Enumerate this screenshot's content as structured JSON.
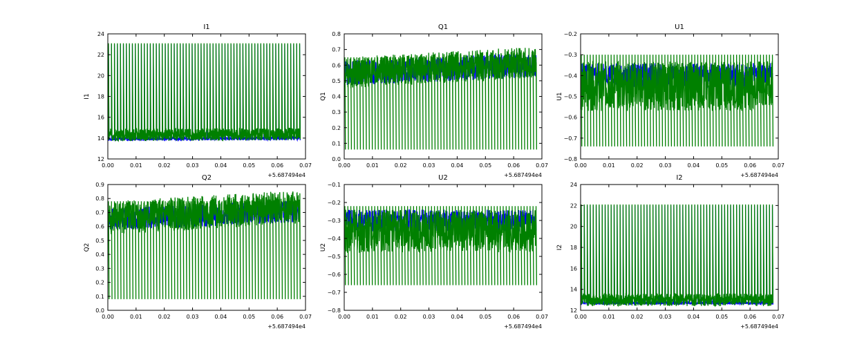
{
  "colors": {
    "blue": "#0000ff",
    "green": "#008000",
    "axes": "#000000",
    "background": "#ffffff"
  },
  "chart_data": [
    {
      "type": "line",
      "title": "I1",
      "xlabel": "",
      "ylabel": "I1",
      "x_offset_label": "+5.687494e4",
      "xlim": [
        0,
        0.07
      ],
      "ylim": [
        12,
        24
      ],
      "xticks": [
        0,
        0.01,
        0.02,
        0.03,
        0.04,
        0.05,
        0.06,
        0.07
      ],
      "xtick_labels": [
        "0.00",
        "0.01",
        "0.02",
        "0.03",
        "0.04",
        "0.05",
        "0.06",
        "0.07"
      ],
      "yticks": [
        12,
        14,
        16,
        18,
        20,
        22,
        24
      ],
      "ytick_labels": [
        "12",
        "14",
        "16",
        "18",
        "20",
        "22",
        "24"
      ],
      "series": [
        {
          "name": "blue",
          "color": "#0000ff",
          "x_end": 0.068,
          "baseline": 13.9,
          "spread": 0.15,
          "trend": 0.1,
          "spike_top": 23.0,
          "spike_bottom": 13.8,
          "spikes": 64,
          "seed": 1
        },
        {
          "name": "green",
          "color": "#008000",
          "x_end": 0.068,
          "baseline": 14.3,
          "spread": 0.6,
          "trend": 0.1,
          "spike_top": 23.1,
          "spike_bottom": 13.9,
          "spikes": 64,
          "seed": 2
        }
      ]
    },
    {
      "type": "line",
      "title": "Q1",
      "xlabel": "",
      "ylabel": "Q1",
      "x_offset_label": "+5.687494e4",
      "xlim": [
        0,
        0.07
      ],
      "ylim": [
        0,
        0.8
      ],
      "xticks": [
        0,
        0.01,
        0.02,
        0.03,
        0.04,
        0.05,
        0.06,
        0.07
      ],
      "xtick_labels": [
        "0.00",
        "0.01",
        "0.02",
        "0.03",
        "0.04",
        "0.05",
        "0.06",
        "0.07"
      ],
      "yticks": [
        0,
        0.1,
        0.2,
        0.3,
        0.4,
        0.5,
        0.6,
        0.7,
        0.8
      ],
      "ytick_labels": [
        "0.0",
        "0.1",
        "0.2",
        "0.3",
        "0.4",
        "0.5",
        "0.6",
        "0.7",
        "0.8"
      ],
      "series": [
        {
          "name": "blue",
          "color": "#0000ff",
          "x_end": 0.068,
          "baseline": 0.55,
          "spread": 0.08,
          "trend": 0.05,
          "spike_top": 0.6,
          "spike_bottom": 0.48,
          "spikes": 0,
          "seed": 3
        },
        {
          "name": "green",
          "color": "#008000",
          "x_end": 0.068,
          "baseline": 0.55,
          "spread": 0.1,
          "trend": 0.07,
          "spike_top": 0.65,
          "spike_bottom": 0.06,
          "spikes": 64,
          "seed": 4
        }
      ]
    },
    {
      "type": "line",
      "title": "U1",
      "xlabel": "",
      "ylabel": "U1",
      "x_offset_label": "+5.687494e4",
      "xlim": [
        0,
        0.07
      ],
      "ylim": [
        -0.8,
        -0.2
      ],
      "xticks": [
        0,
        0.01,
        0.02,
        0.03,
        0.04,
        0.05,
        0.06,
        0.07
      ],
      "xtick_labels": [
        "0.00",
        "0.01",
        "0.02",
        "0.03",
        "0.04",
        "0.05",
        "0.06",
        "0.07"
      ],
      "yticks": [
        -0.8,
        -0.7,
        -0.6,
        -0.5,
        -0.4,
        -0.3,
        -0.2
      ],
      "ytick_labels": [
        "−0.8",
        "−0.7",
        "−0.6",
        "−0.5",
        "−0.4",
        "−0.3",
        "−0.2"
      ],
      "series": [
        {
          "name": "blue",
          "color": "#0000ff",
          "x_end": 0.068,
          "baseline": -0.4,
          "spread": 0.06,
          "trend": 0,
          "spike_top": -0.34,
          "spike_bottom": -0.56,
          "spikes": 0,
          "seed": 5
        },
        {
          "name": "green",
          "color": "#008000",
          "x_end": 0.068,
          "baseline": -0.45,
          "spread": 0.12,
          "trend": 0,
          "spike_top": -0.3,
          "spike_bottom": -0.74,
          "spikes": 64,
          "seed": 6
        }
      ]
    },
    {
      "type": "line",
      "title": "Q2",
      "xlabel": "",
      "ylabel": "Q2",
      "x_offset_label": "+5.687494e4",
      "xlim": [
        0,
        0.07
      ],
      "ylim": [
        0,
        0.9
      ],
      "xticks": [
        0,
        0.01,
        0.02,
        0.03,
        0.04,
        0.05,
        0.06,
        0.07
      ],
      "xtick_labels": [
        "0.00",
        "0.01",
        "0.02",
        "0.03",
        "0.04",
        "0.05",
        "0.06",
        "0.07"
      ],
      "yticks": [
        0,
        0.1,
        0.2,
        0.3,
        0.4,
        0.5,
        0.6,
        0.7,
        0.8,
        0.9
      ],
      "ytick_labels": [
        "0.0",
        "0.1",
        "0.2",
        "0.3",
        "0.4",
        "0.5",
        "0.6",
        "0.7",
        "0.8",
        "0.9"
      ],
      "series": [
        {
          "name": "blue",
          "color": "#0000ff",
          "x_end": 0.068,
          "baseline": 0.65,
          "spread": 0.08,
          "trend": 0.06,
          "spike_top": 0.72,
          "spike_bottom": 0.58,
          "spikes": 0,
          "seed": 7
        },
        {
          "name": "green",
          "color": "#008000",
          "x_end": 0.068,
          "baseline": 0.66,
          "spread": 0.12,
          "trend": 0.08,
          "spike_top": 0.78,
          "spike_bottom": 0.08,
          "spikes": 64,
          "seed": 8
        }
      ]
    },
    {
      "type": "line",
      "title": "U2",
      "xlabel": "",
      "ylabel": "U2",
      "x_offset_label": "+5.687494e4",
      "xlim": [
        0,
        0.07
      ],
      "ylim": [
        -0.8,
        -0.1
      ],
      "xticks": [
        0,
        0.01,
        0.02,
        0.03,
        0.04,
        0.05,
        0.06,
        0.07
      ],
      "xtick_labels": [
        "0.00",
        "0.01",
        "0.02",
        "0.03",
        "0.04",
        "0.05",
        "0.06",
        "0.07"
      ],
      "yticks": [
        -0.8,
        -0.7,
        -0.6,
        -0.5,
        -0.4,
        -0.3,
        -0.2,
        -0.1
      ],
      "ytick_labels": [
        "−0.8",
        "−0.7",
        "−0.6",
        "−0.5",
        "−0.4",
        "−0.3",
        "−0.2",
        "−0.1"
      ],
      "series": [
        {
          "name": "blue",
          "color": "#0000ff",
          "x_end": 0.068,
          "baseline": -0.3,
          "spread": 0.06,
          "trend": 0,
          "spike_top": -0.24,
          "spike_bottom": -0.45,
          "spikes": 0,
          "seed": 9
        },
        {
          "name": "green",
          "color": "#008000",
          "x_end": 0.068,
          "baseline": -0.36,
          "spread": 0.12,
          "trend": 0,
          "spike_top": -0.22,
          "spike_bottom": -0.66,
          "spikes": 64,
          "seed": 10
        }
      ]
    },
    {
      "type": "line",
      "title": "I2",
      "xlabel": "",
      "ylabel": "I2",
      "x_offset_label": "+5.687494e4",
      "xlim": [
        0,
        0.07
      ],
      "ylim": [
        12,
        24
      ],
      "xticks": [
        0,
        0.01,
        0.02,
        0.03,
        0.04,
        0.05,
        0.06,
        0.07
      ],
      "xtick_labels": [
        "0.00",
        "0.01",
        "0.02",
        "0.03",
        "0.04",
        "0.05",
        "0.06",
        "0.07"
      ],
      "yticks": [
        12,
        14,
        16,
        18,
        20,
        22,
        24
      ],
      "ytick_labels": [
        "12",
        "14",
        "16",
        "18",
        "20",
        "22",
        "24"
      ],
      "series": [
        {
          "name": "blue",
          "color": "#0000ff",
          "x_end": 0.068,
          "baseline": 12.7,
          "spread": 0.15,
          "trend": 0,
          "spike_top": 22.0,
          "spike_bottom": 12.6,
          "spikes": 64,
          "seed": 11
        },
        {
          "name": "green",
          "color": "#008000",
          "x_end": 0.068,
          "baseline": 13.0,
          "spread": 0.6,
          "trend": 0,
          "spike_top": 22.1,
          "spike_bottom": 12.7,
          "spikes": 64,
          "seed": 12
        }
      ]
    }
  ]
}
